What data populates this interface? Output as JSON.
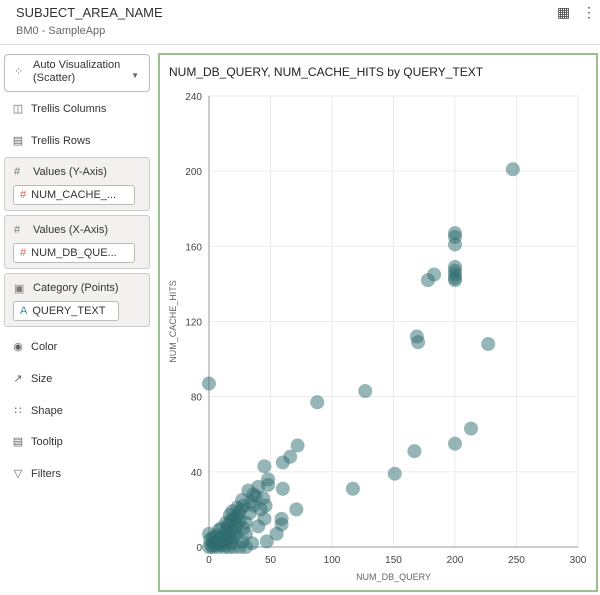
{
  "header": {
    "title": "SUBJECT_AREA_NAME",
    "subtitle": "BM0 - SampleApp"
  },
  "sidebar": {
    "viz_selector": {
      "line1": "Auto Visualization",
      "line2": "(Scatter)"
    },
    "trellis_columns": "Trellis Columns",
    "trellis_rows": "Trellis Rows",
    "wells": [
      {
        "label": "Values (Y-Axis)",
        "pill": "NUM_CACHE_..."
      },
      {
        "label": "Values (X-Axis)",
        "pill": "NUM_DB_QUE..."
      },
      {
        "label": "Category (Points)",
        "pill": "QUERY_TEXT"
      }
    ],
    "color": "Color",
    "size": "Size",
    "shape": "Shape",
    "tooltip": "Tooltip",
    "filters": "Filters"
  },
  "chart_data": {
    "type": "scatter",
    "title": "NUM_DB_QUERY, NUM_CACHE_HITS by QUERY_TEXT",
    "xlabel": "NUM_DB_QUERY",
    "ylabel": "NUM_CACHE_HITS",
    "xlim": [
      0,
      300
    ],
    "ylim": [
      0,
      240
    ],
    "xticks": [
      0,
      50,
      100,
      150,
      200,
      250,
      300
    ],
    "yticks": [
      0,
      40,
      80,
      120,
      160,
      200,
      240
    ],
    "grid": true,
    "point_color": "#2e6b6f",
    "points": [
      [
        0,
        87
      ],
      [
        88,
        77
      ],
      [
        127,
        83
      ],
      [
        117,
        31
      ],
      [
        151,
        39
      ],
      [
        167,
        51
      ],
      [
        200,
        55
      ],
      [
        213,
        63
      ],
      [
        247,
        201
      ],
      [
        227,
        108
      ],
      [
        169,
        112
      ],
      [
        170,
        109
      ],
      [
        178,
        142
      ],
      [
        183,
        145
      ],
      [
        200,
        167
      ],
      [
        200,
        165
      ],
      [
        200,
        161
      ],
      [
        200,
        149
      ],
      [
        200,
        147
      ],
      [
        200,
        145
      ],
      [
        200,
        143
      ],
      [
        200,
        142
      ],
      [
        72,
        54
      ],
      [
        66,
        48
      ],
      [
        60,
        45
      ],
      [
        45,
        43
      ],
      [
        48,
        36
      ],
      [
        48,
        33
      ],
      [
        60,
        31
      ],
      [
        71,
        20
      ],
      [
        59,
        15
      ],
      [
        59,
        12
      ],
      [
        55,
        7
      ],
      [
        47,
        3
      ],
      [
        35,
        2
      ],
      [
        32,
        30
      ],
      [
        36,
        28
      ],
      [
        46,
        22
      ],
      [
        45,
        15
      ],
      [
        38,
        27
      ],
      [
        40,
        32
      ],
      [
        30,
        0
      ],
      [
        26,
        20
      ],
      [
        28,
        22
      ],
      [
        24,
        18
      ],
      [
        22,
        16
      ],
      [
        20,
        15
      ],
      [
        18,
        14
      ],
      [
        16,
        12
      ],
      [
        15,
        10
      ],
      [
        14,
        8
      ],
      [
        12,
        6
      ],
      [
        10,
        5
      ],
      [
        8,
        4
      ],
      [
        6,
        3
      ],
      [
        4,
        2
      ],
      [
        2,
        1
      ],
      [
        0,
        0
      ],
      [
        1,
        4
      ],
      [
        0,
        7
      ],
      [
        3,
        0
      ],
      [
        5,
        1
      ],
      [
        7,
        0
      ],
      [
        9,
        2
      ],
      [
        11,
        1
      ],
      [
        13,
        3
      ],
      [
        15,
        4
      ],
      [
        17,
        6
      ],
      [
        19,
        8
      ],
      [
        21,
        10
      ],
      [
        23,
        12
      ],
      [
        25,
        14
      ],
      [
        20,
        5
      ],
      [
        18,
        2
      ],
      [
        22,
        7
      ],
      [
        28,
        10
      ],
      [
        30,
        13
      ],
      [
        33,
        18
      ],
      [
        34,
        24
      ],
      [
        36,
        22
      ],
      [
        25,
        0
      ],
      [
        12,
        0
      ],
      [
        16,
        0
      ],
      [
        20,
        0
      ],
      [
        10,
        10
      ],
      [
        14,
        13
      ],
      [
        17,
        17
      ],
      [
        19,
        19
      ],
      [
        23,
        21
      ],
      [
        27,
        25
      ],
      [
        8,
        9
      ],
      [
        6,
        6
      ],
      [
        3,
        5
      ],
      [
        27,
        3
      ],
      [
        30,
        7
      ],
      [
        40,
        11
      ],
      [
        42,
        20
      ],
      [
        44,
        26
      ]
    ]
  }
}
